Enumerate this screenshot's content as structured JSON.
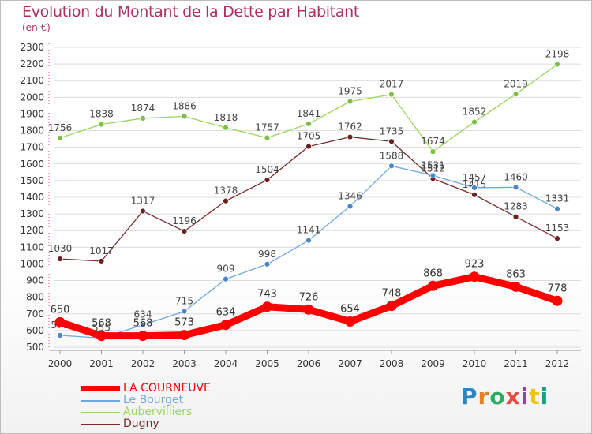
{
  "title": "Evolution du Montant de la Dette par Habitant",
  "subtitle": "(en €)",
  "logo": {
    "text": "Proxiti",
    "colors": [
      "#2e86c1",
      "#e67e22",
      "#27ae60",
      "#e74c3c",
      "#8e44ad",
      "#f1c40f",
      "#16a085"
    ]
  },
  "chart_data": {
    "type": "line",
    "title": "Evolution du Montant de la Dette par Habitant",
    "subtitle": "(en €)",
    "xlabel": "",
    "ylabel": "",
    "ylim": [
      500,
      2300
    ],
    "yticks": [
      500,
      600,
      700,
      800,
      900,
      1000,
      1100,
      1200,
      1300,
      1400,
      1500,
      1600,
      1700,
      1800,
      1900,
      2000,
      2100,
      2200,
      2300
    ],
    "ytick_labels": [
      "500",
      "600",
      "700",
      "800",
      "900",
      "1000",
      "1100",
      "1200",
      "1300",
      "1400",
      "1500",
      "1600",
      "1700",
      "1800",
      "1900",
      "2000",
      "2100",
      "2200",
      "2300"
    ],
    "categories": [
      "2000",
      "2001",
      "2002",
      "2003",
      "2004",
      "2005",
      "2006",
      "2007",
      "2008",
      "2009",
      "2010",
      "2011",
      "2012"
    ],
    "grid": "horizontal",
    "legend_position": "bottom-left",
    "series": [
      {
        "name": "LA COURNEUVE",
        "color": "#ff0000",
        "values": [
          650,
          568,
          568,
          573,
          634,
          743,
          726,
          654,
          748,
          868,
          923,
          863,
          778
        ]
      },
      {
        "name": "Le Bourget",
        "color": "#6fa8dc",
        "point_color": "#4a86c6",
        "values": [
          571,
          555,
          634,
          715,
          909,
          998,
          1141,
          1346,
          1588,
          1531,
          1457,
          1460,
          1331
        ]
      },
      {
        "name": "Aubervilliers",
        "color": "#99d65c",
        "point_color": "#7bc043",
        "values": [
          1756,
          1838,
          1874,
          1886,
          1818,
          1757,
          1841,
          1975,
          2017,
          1674,
          1852,
          2019,
          2198
        ]
      },
      {
        "name": "Dugny",
        "color": "#7a2a2a",
        "point_color": "#6b1f1f",
        "values": [
          1030,
          1017,
          1317,
          1196,
          1378,
          1504,
          1705,
          1762,
          1735,
          1512,
          1415,
          1283,
          1153
        ]
      }
    ]
  }
}
